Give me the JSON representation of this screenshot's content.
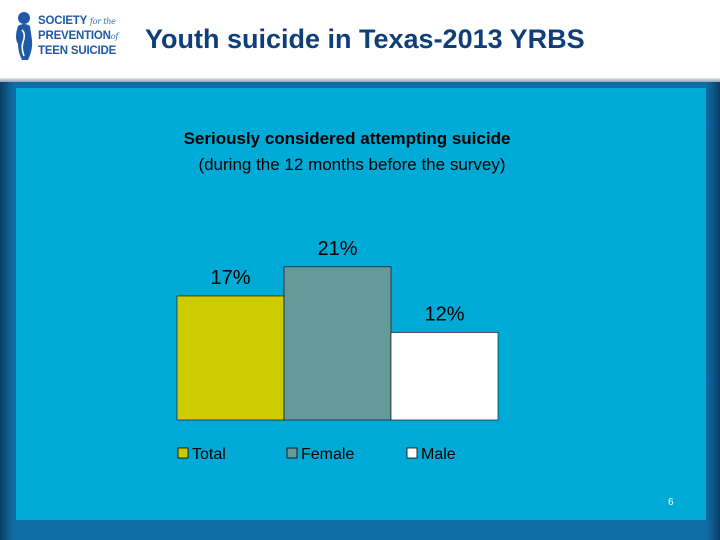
{
  "header": {
    "title": "Youth suicide in Texas-2013 YRBS",
    "logo": {
      "line1": "SOCIETY",
      "line1_small": "for the",
      "line2": "PREVENTION",
      "line2_small": "of",
      "line3": "TEEN SUICIDE"
    }
  },
  "chart_data": {
    "type": "bar",
    "title": "Seriously considered attempting suicide",
    "subtitle": "(during the 12 months before the survey)",
    "categories": [
      "Total",
      "Female",
      "Male"
    ],
    "values": [
      17,
      21,
      12
    ],
    "data_labels": [
      "17%",
      "21%",
      "12%"
    ],
    "colors": [
      "#cccc00",
      "#669999",
      "#ffffff"
    ],
    "ylim": [
      0,
      30
    ],
    "grid": false,
    "legend": "bottom",
    "xlabel": "",
    "ylabel": ""
  },
  "footer": {
    "page_number": "6"
  },
  "colors": {
    "panel": "#00aad6",
    "title": "#0f3f78",
    "background": "#0f6ea5"
  }
}
